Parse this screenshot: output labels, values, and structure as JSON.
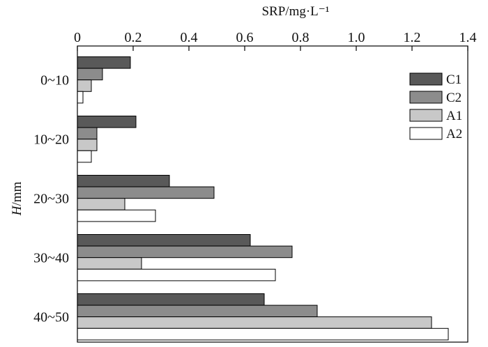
{
  "chart_data": {
    "type": "bar",
    "orientation": "horizontal",
    "title": "",
    "xlabel": "SRP/mg·L⁻¹",
    "ylabel": "H/mm",
    "ylabel_var": "H",
    "ylabel_unit": "/mm",
    "xlim": [
      0,
      1.4
    ],
    "xticks": [
      "0",
      "0.2",
      "0.4",
      "0.6",
      "0.8",
      "1.0",
      "1.2",
      "1.4"
    ],
    "x_axis_position": "top",
    "categories": [
      "0~10",
      "10~20",
      "20~30",
      "30~40",
      "40~50"
    ],
    "series": [
      {
        "name": "C1",
        "color": "#595959",
        "values": [
          0.19,
          0.21,
          0.33,
          0.62,
          0.67
        ]
      },
      {
        "name": "C2",
        "color": "#8c8c8c",
        "values": [
          0.09,
          0.07,
          0.49,
          0.77,
          0.86
        ]
      },
      {
        "name": "A1",
        "color": "#c8c8c8",
        "values": [
          0.05,
          0.07,
          0.17,
          0.23,
          1.27
        ]
      },
      {
        "name": "A2",
        "color": "#ffffff",
        "values": [
          0.02,
          0.05,
          0.28,
          0.71,
          1.33
        ]
      }
    ],
    "grid": false,
    "legend_position": "top-right"
  }
}
